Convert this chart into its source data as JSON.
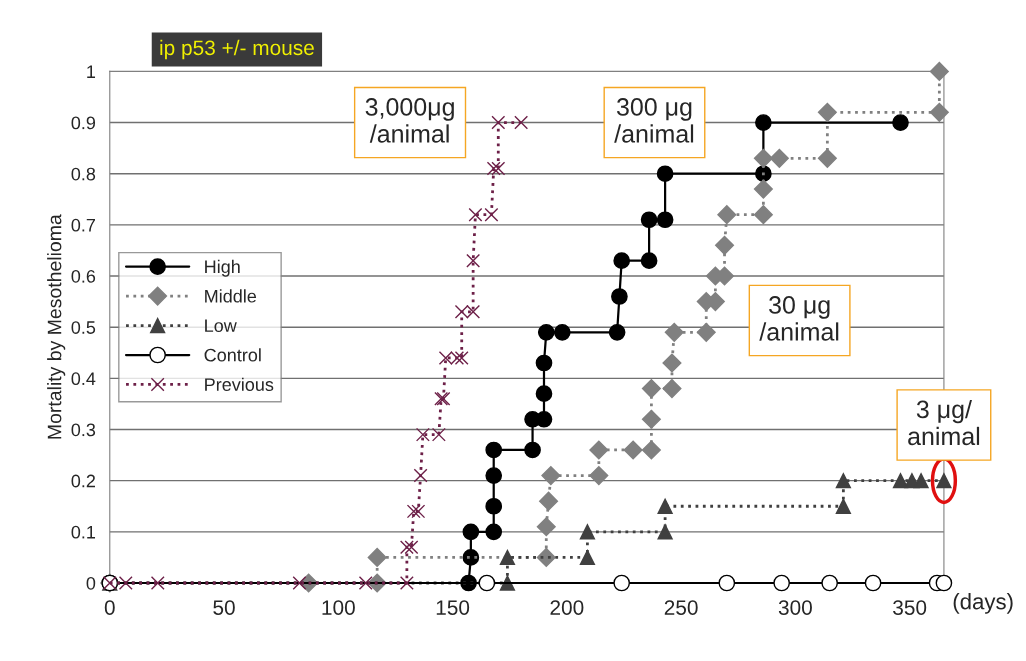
{
  "chart_data": {
    "type": "line",
    "title": "ip p53 +/- mouse",
    "xlabel": "(days)",
    "ylabel": "Mortality by Mesothelioma",
    "xlim": [
      0,
      365
    ],
    "xticks": [
      0,
      50,
      100,
      150,
      200,
      250,
      300,
      350
    ],
    "ylim": [
      0,
      1
    ],
    "yticks": [
      0,
      0.1,
      0.2,
      0.3,
      0.4,
      0.5,
      0.6,
      0.7,
      0.8,
      0.9,
      1
    ],
    "grid": "y",
    "legend": "center left",
    "series": [
      {
        "name": "High",
        "color": "#000000",
        "marker": "circle",
        "line_style": "solid",
        "x": [
          0,
          157,
          158,
          158,
          168,
          168,
          168,
          168,
          185,
          185,
          190,
          190,
          190,
          191,
          198,
          222,
          223,
          224,
          236,
          236,
          243,
          243,
          286,
          286,
          346
        ],
        "values": [
          0,
          0,
          0.05,
          0.1,
          0.1,
          0.15,
          0.21,
          0.26,
          0.26,
          0.32,
          0.32,
          0.37,
          0.43,
          0.49,
          0.49,
          0.49,
          0.56,
          0.63,
          0.63,
          0.71,
          0.71,
          0.8,
          0.8,
          0.9,
          0.9
        ]
      },
      {
        "name": "Middle",
        "color": "#808080",
        "marker": "diamond",
        "line_style": "dotted",
        "x": [
          0,
          87,
          117,
          117,
          191,
          191,
          192,
          193,
          214,
          214,
          229,
          237,
          237,
          237,
          246,
          246,
          247,
          261,
          261,
          265,
          265,
          269,
          269,
          270,
          286,
          286,
          286,
          293,
          314,
          314,
          363,
          363
        ],
        "values": [
          0,
          0,
          0,
          0.05,
          0.05,
          0.11,
          0.16,
          0.21,
          0.21,
          0.26,
          0.26,
          0.26,
          0.32,
          0.38,
          0.38,
          0.43,
          0.49,
          0.49,
          0.55,
          0.55,
          0.6,
          0.6,
          0.66,
          0.72,
          0.72,
          0.77,
          0.83,
          0.83,
          0.83,
          0.92,
          0.92,
          1.0
        ]
      },
      {
        "name": "Low",
        "color": "#404040",
        "marker": "triangle",
        "line_style": "dotted",
        "x": [
          0,
          174,
          174,
          209,
          209,
          243,
          243,
          321,
          321,
          346,
          351,
          355,
          365
        ],
        "values": [
          0,
          0,
          0.05,
          0.05,
          0.1,
          0.1,
          0.15,
          0.15,
          0.2,
          0.2,
          0.2,
          0.2,
          0.2
        ]
      },
      {
        "name": "Control",
        "color": "#000000",
        "marker": "open_circle",
        "line_style": "solid",
        "x": [
          0,
          165,
          224,
          270,
          294,
          315,
          334,
          362,
          365
        ],
        "values": [
          0,
          0,
          0,
          0,
          0,
          0,
          0,
          0,
          0
        ]
      },
      {
        "name": "Previous",
        "color": "#6d2048",
        "marker": "cross",
        "line_style": "dotted",
        "x": [
          0,
          7,
          21,
          83,
          112,
          130,
          130,
          132,
          133,
          135,
          136,
          137,
          144,
          145,
          146,
          147,
          152,
          154,
          154,
          159,
          159,
          160,
          167,
          168,
          170,
          170,
          180
        ],
        "values": [
          0,
          0,
          0,
          0,
          0,
          0,
          0.07,
          0.07,
          0.14,
          0.14,
          0.21,
          0.29,
          0.29,
          0.36,
          0.36,
          0.44,
          0.44,
          0.44,
          0.53,
          0.53,
          0.63,
          0.72,
          0.72,
          0.81,
          0.81,
          0.9,
          0.9
        ]
      }
    ],
    "annotations": [
      "3,000μg\n/animal",
      "300 μg\n/animal",
      "30 μg\n/animal",
      {
        "text": "3 μg/\nanimal",
        "x": 365,
        "y": 0.2
      }
    ]
  }
}
